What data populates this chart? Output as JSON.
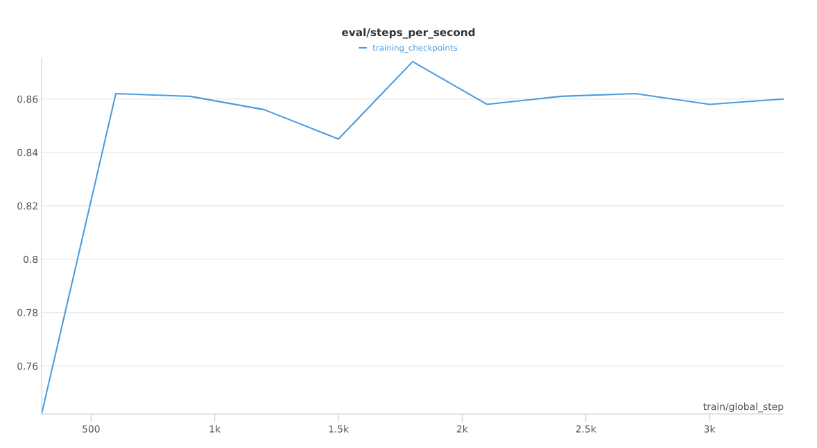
{
  "chart_data": {
    "type": "line",
    "title": "eval/steps_per_second",
    "xlabel": "train/global_step",
    "x": [
      300,
      600,
      900,
      1200,
      1500,
      1800,
      2100,
      2400,
      2700,
      3000,
      3300
    ],
    "series": [
      {
        "name": "training_checkpoints",
        "color": "#4a9be0",
        "values": [
          0.742,
          0.862,
          0.861,
          0.856,
          0.845,
          0.874,
          0.858,
          0.861,
          0.862,
          0.858,
          0.86
        ]
      }
    ],
    "xlim": [
      300,
      3300
    ],
    "xticks": [
      {
        "value": 500,
        "label": "500"
      },
      {
        "value": 1000,
        "label": "1k"
      },
      {
        "value": 1500,
        "label": "1.5k"
      },
      {
        "value": 2000,
        "label": "2k"
      },
      {
        "value": 2500,
        "label": "2.5k"
      },
      {
        "value": 3000,
        "label": "3k"
      }
    ],
    "ylim": [
      0.742,
      0.875
    ],
    "yticks": [
      {
        "value": 0.76,
        "label": "0.76"
      },
      {
        "value": 0.78,
        "label": "0.78"
      },
      {
        "value": 0.8,
        "label": "0.8"
      },
      {
        "value": 0.82,
        "label": "0.82"
      },
      {
        "value": 0.84,
        "label": "0.84"
      },
      {
        "value": 0.86,
        "label": "0.86"
      }
    ],
    "grid": "y",
    "legend": "top"
  }
}
